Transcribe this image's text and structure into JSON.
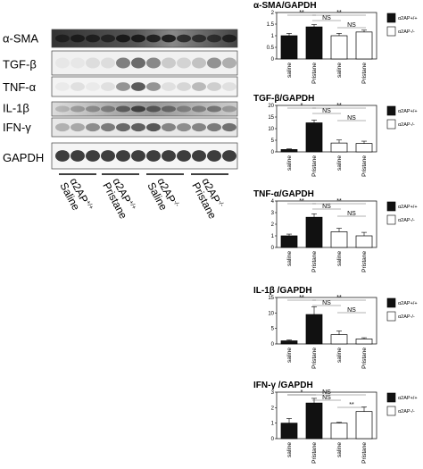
{
  "blot": {
    "rows": [
      {
        "label": "α-SMA"
      },
      {
        "label": "TGF-β"
      },
      {
        "label": "TNF-α"
      },
      {
        "label": "IL-1β"
      },
      {
        "label": "IFN-γ"
      },
      {
        "label": "GAPDH"
      }
    ],
    "lanes": [
      {
        "line1": "α2AP",
        "sup": "+/+",
        "line2": "Saline"
      },
      {
        "line1": "α2AP",
        "sup": "+/+",
        "line2": "Pristane"
      },
      {
        "line1": "α2AP",
        "sup": "-/-",
        "line2": "Saline"
      },
      {
        "line1": "α2AP",
        "sup": "-/-",
        "line2": "Pristane"
      }
    ]
  },
  "legend": {
    "wt": "α2AP+/+",
    "ko": "α2AP-/-",
    "wt_color": "#111111",
    "ko_color": "#ffffff"
  },
  "chart_data": [
    {
      "type": "bar",
      "title": "α-SMA/GAPDH",
      "categories": [
        "saline",
        "Pristane",
        "saline",
        "Pristane"
      ],
      "values": [
        1.0,
        1.38,
        1.0,
        1.16
      ],
      "errors": [
        0.1,
        0.1,
        0.1,
        0.08
      ],
      "ylim": [
        0,
        2
      ],
      "yticks": [
        0,
        0.5,
        1,
        1.5,
        2
      ],
      "ytick_labels": [
        "0",
        "0.5",
        "1",
        "1.5",
        "2"
      ],
      "significance": [
        {
          "from": 0,
          "to": 1,
          "label": "**"
        },
        {
          "from": 1,
          "to": 2,
          "label": "NS"
        },
        {
          "from": 2,
          "to": 3,
          "label": "NS"
        },
        {
          "from": 1,
          "to": 3,
          "label": "**"
        }
      ]
    },
    {
      "type": "bar",
      "title": "TGF-β/GAPDH",
      "categories": [
        "saline",
        "Pristane",
        "saline",
        "Pristane"
      ],
      "values": [
        1.0,
        12.5,
        3.8,
        3.6
      ],
      "errors": [
        0.3,
        1.2,
        1.3,
        1.0
      ],
      "ylim": [
        0,
        20
      ],
      "yticks": [
        0,
        5,
        10,
        15,
        20
      ],
      "ytick_labels": [
        "0",
        "5",
        "10",
        "15",
        "20"
      ],
      "significance": [
        {
          "from": 0,
          "to": 1,
          "label": "*"
        },
        {
          "from": 1,
          "to": 2,
          "label": "NS"
        },
        {
          "from": 2,
          "to": 3,
          "label": "NS"
        },
        {
          "from": 1,
          "to": 3,
          "label": "**"
        }
      ]
    },
    {
      "type": "bar",
      "title": "TNF-α/GAPDH",
      "categories": [
        "saline",
        "Pristane",
        "saline",
        "Pristane"
      ],
      "values": [
        1.0,
        2.6,
        1.35,
        1.0
      ],
      "errors": [
        0.15,
        0.3,
        0.3,
        0.3
      ],
      "ylim": [
        0,
        4
      ],
      "yticks": [
        0,
        1,
        2,
        3,
        4
      ],
      "ytick_labels": [
        "0",
        "1",
        "2",
        "3",
        "4"
      ],
      "significance": [
        {
          "from": 0,
          "to": 1,
          "label": "**"
        },
        {
          "from": 1,
          "to": 2,
          "label": "NS"
        },
        {
          "from": 2,
          "to": 3,
          "label": "NS"
        },
        {
          "from": 1,
          "to": 3,
          "label": "**"
        }
      ]
    },
    {
      "type": "bar",
      "title": "IL-1β /GAPDH",
      "categories": [
        "saline",
        "Pristane",
        "saline",
        "Pristane"
      ],
      "values": [
        1.0,
        9.5,
        3.0,
        1.6
      ],
      "errors": [
        0.3,
        2.5,
        1.2,
        0.4
      ],
      "ylim": [
        0,
        15
      ],
      "yticks": [
        0,
        5,
        10,
        15
      ],
      "ytick_labels": [
        "0",
        "5",
        "10",
        "15"
      ],
      "significance": [
        {
          "from": 0,
          "to": 1,
          "label": "**"
        },
        {
          "from": 1,
          "to": 2,
          "label": "NS"
        },
        {
          "from": 2,
          "to": 3,
          "label": "NS"
        },
        {
          "from": 1,
          "to": 3,
          "label": "**"
        }
      ]
    },
    {
      "type": "bar",
      "title": "IFN-γ /GAPDH",
      "categories": [
        "saline",
        "Pristane",
        "saline",
        "Pristane"
      ],
      "values": [
        1.0,
        2.3,
        1.0,
        1.75
      ],
      "errors": [
        0.3,
        0.3,
        0.05,
        0.3
      ],
      "ylim": [
        0,
        3
      ],
      "yticks": [
        0,
        1,
        2,
        3
      ],
      "ytick_labels": [
        "0",
        "1",
        "2",
        "3"
      ],
      "significance": [
        {
          "from": 0,
          "to": 1,
          "label": "*"
        },
        {
          "from": 1,
          "to": 2,
          "label": "NS"
        },
        {
          "from": 2,
          "to": 3,
          "label": "**"
        },
        {
          "from": 0,
          "to": 3,
          "label": "NS"
        }
      ]
    }
  ]
}
